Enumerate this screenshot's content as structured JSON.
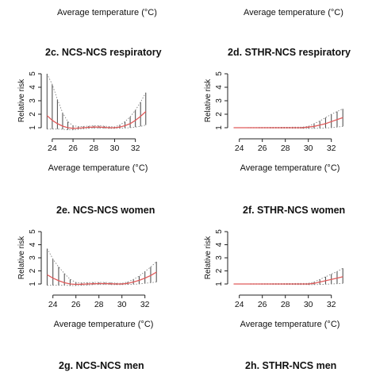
{
  "top_captions": [
    "Average temperature (°C)",
    "Average temperature (°C)"
  ],
  "bottom_titles": [
    "2g. NCS-NCS men",
    "2h. STHR-NCS men"
  ],
  "colors": {
    "rr_curve": "#e05a5a",
    "ci_bars": "#555555",
    "ci_dotted": "#777777",
    "axis": "#222222"
  },
  "chart_data": [
    {
      "type": "line",
      "title": "2c. NCS-NCS respiratory",
      "xlabel": "Average temperature (°C)",
      "ylabel": "Relative risk",
      "xlim": [
        23.4,
        33.4
      ],
      "ylim": [
        1,
        5
      ],
      "xticks": [
        24,
        26,
        28,
        30,
        32
      ],
      "yticks": [
        1,
        2,
        3,
        4,
        5
      ],
      "x": [
        23.5,
        24.0,
        24.5,
        25.0,
        25.5,
        26.0,
        26.5,
        27.0,
        27.5,
        28.0,
        28.5,
        29.0,
        29.5,
        30.0,
        30.5,
        31.0,
        31.5,
        32.0,
        32.5,
        33.0
      ],
      "y": [
        1.9,
        1.55,
        1.3,
        1.12,
        1.0,
        0.95,
        0.97,
        1.0,
        1.03,
        1.05,
        1.05,
        1.03,
        1.0,
        1.0,
        1.05,
        1.15,
        1.3,
        1.55,
        1.85,
        2.2
      ],
      "lower": [
        0.9,
        0.9,
        0.9,
        0.88,
        0.85,
        0.84,
        0.88,
        0.92,
        0.95,
        0.97,
        0.97,
        0.96,
        0.95,
        0.95,
        0.96,
        0.98,
        1.0,
        1.05,
        1.1,
        1.2
      ],
      "upper": [
        5.0,
        4.2,
        3.1,
        2.1,
        1.45,
        1.15,
        1.08,
        1.1,
        1.12,
        1.14,
        1.14,
        1.12,
        1.08,
        1.06,
        1.2,
        1.45,
        1.8,
        2.3,
        2.9,
        3.6
      ]
    },
    {
      "type": "line",
      "title": "2d. STHR-NCS respiratory",
      "xlabel": "Average temperature (°C)",
      "ylabel": "Relative risk",
      "xlim": [
        23.4,
        33.4
      ],
      "ylim": [
        1,
        5
      ],
      "xticks": [
        24,
        26,
        28,
        30,
        32
      ],
      "yticks": [
        1,
        2,
        3,
        4,
        5
      ],
      "x": [
        23.5,
        29.5,
        30.0,
        30.5,
        31.0,
        31.5,
        32.0,
        32.5,
        33.0
      ],
      "y": [
        1.0,
        1.0,
        1.05,
        1.1,
        1.2,
        1.3,
        1.45,
        1.6,
        1.75
      ],
      "lower": [
        1.0,
        0.95,
        0.95,
        0.95,
        0.96,
        0.98,
        1.0,
        1.05,
        1.1
      ],
      "upper": [
        1.0,
        1.05,
        1.1,
        1.3,
        1.5,
        1.75,
        2.0,
        2.2,
        2.4
      ]
    },
    {
      "type": "line",
      "title": "2e. NCS-NCS women",
      "xlabel": "Average temperature (°C)",
      "ylabel": "Relative risk",
      "xlim": [
        23.4,
        33.4
      ],
      "ylim": [
        1,
        5
      ],
      "xticks": [
        24,
        26,
        28,
        30,
        32
      ],
      "yticks": [
        1,
        2,
        3,
        4,
        5
      ],
      "x": [
        23.5,
        24.0,
        24.5,
        25.0,
        25.5,
        26.0,
        26.5,
        27.0,
        27.5,
        28.0,
        28.5,
        29.0,
        29.5,
        30.0,
        30.5,
        31.0,
        31.5,
        32.0,
        32.5,
        33.0
      ],
      "y": [
        1.7,
        1.45,
        1.25,
        1.1,
        1.0,
        0.97,
        0.98,
        1.0,
        1.02,
        1.03,
        1.03,
        1.02,
        1.0,
        1.0,
        1.05,
        1.15,
        1.28,
        1.45,
        1.65,
        1.9
      ],
      "lower": [
        0.9,
        0.9,
        0.9,
        0.9,
        0.88,
        0.88,
        0.9,
        0.92,
        0.95,
        0.96,
        0.96,
        0.95,
        0.95,
        0.95,
        0.96,
        0.98,
        1.0,
        1.05,
        1.1,
        1.15
      ],
      "upper": [
        3.7,
        2.9,
        2.3,
        1.8,
        1.35,
        1.12,
        1.08,
        1.1,
        1.12,
        1.12,
        1.12,
        1.1,
        1.06,
        1.05,
        1.15,
        1.35,
        1.6,
        1.95,
        2.3,
        2.7
      ]
    },
    {
      "type": "line",
      "title": "2f. STHR-NCS women",
      "xlabel": "Average temperature (°C)",
      "ylabel": "Relative risk",
      "xlim": [
        23.4,
        33.4
      ],
      "ylim": [
        1,
        5
      ],
      "xticks": [
        24,
        26,
        28,
        30,
        32
      ],
      "yticks": [
        1,
        2,
        3,
        4,
        5
      ],
      "x": [
        23.5,
        30.0,
        30.5,
        31.0,
        31.5,
        32.0,
        32.5,
        33.0
      ],
      "y": [
        1.0,
        1.0,
        1.05,
        1.15,
        1.25,
        1.35,
        1.45,
        1.55
      ],
      "lower": [
        1.0,
        0.95,
        0.95,
        0.96,
        0.98,
        1.0,
        1.02,
        1.05
      ],
      "upper": [
        1.0,
        1.05,
        1.15,
        1.35,
        1.55,
        1.75,
        1.95,
        2.2
      ]
    }
  ]
}
